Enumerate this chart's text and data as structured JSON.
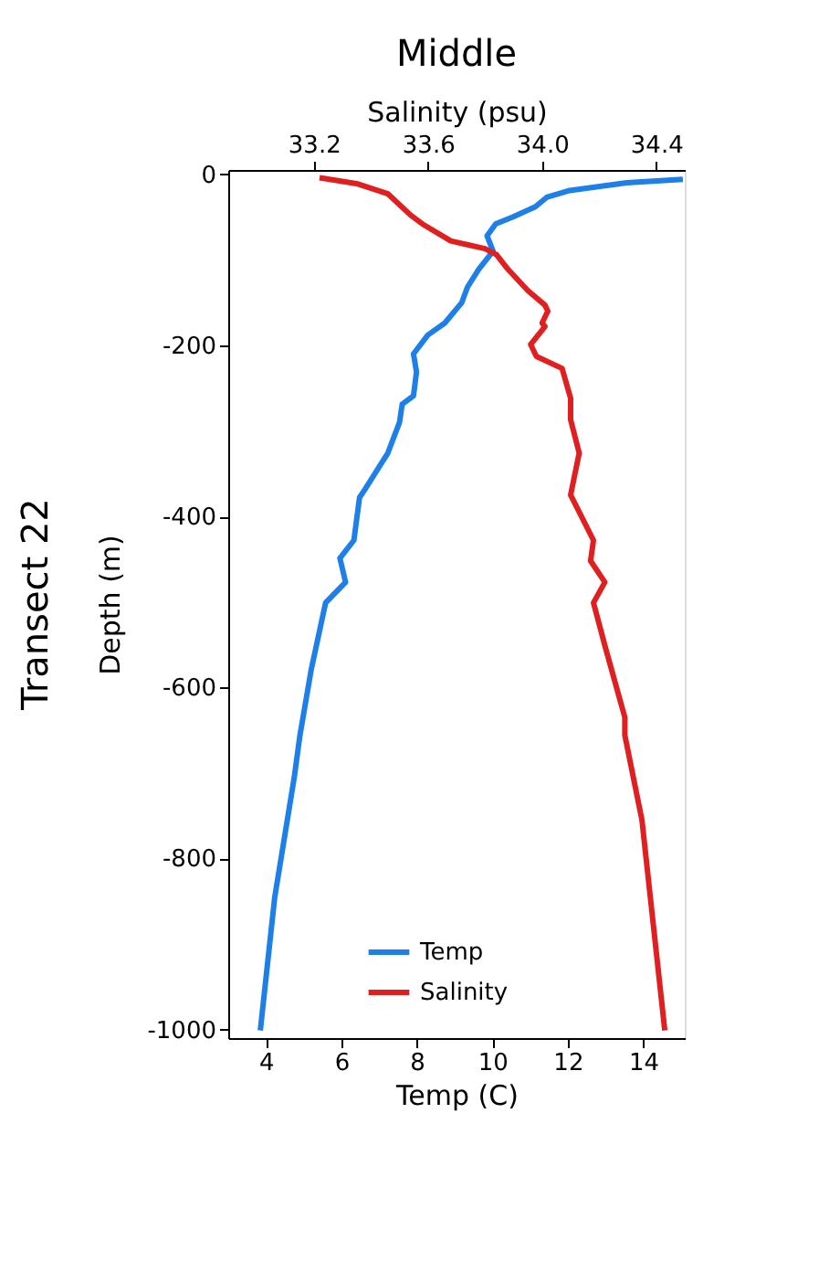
{
  "chart_data": {
    "type": "line",
    "title": "Middle",
    "xlabel": "Temp (C)",
    "x2label": "Salinity (psu)",
    "ylabel": "Depth (m)",
    "annotations": [
      "Transect 22"
    ],
    "xlim": [
      3,
      15.1
    ],
    "xticks": [
      4,
      6,
      8,
      10,
      12,
      14
    ],
    "x2lim": [
      32.9,
      34.5
    ],
    "x2ticks": [
      33.2,
      33.6,
      {
        "value": 34,
        "label": "34.0"
      },
      34.4
    ],
    "ylim": [
      -1010,
      5
    ],
    "yticks": [
      0,
      -200,
      -400,
      -600,
      -800,
      -1000
    ],
    "grid": false,
    "legend": "bottom",
    "marker": "none",
    "line_style": "solid",
    "series": [
      {
        "name": "Temp",
        "color": "#1e7fe8",
        "x": [
          15.05,
          13.56,
          12.05,
          11.44,
          11.14,
          10.54,
          10.09,
          9.86,
          10.02,
          9.64,
          9.34,
          9.19,
          8.74,
          8.29,
          7.91,
          7.99,
          7.91,
          7.61,
          7.54,
          7.23,
          6.63,
          6.48,
          6.33,
          5.96,
          6.11,
          5.58,
          5.2,
          4.9,
          4.75,
          4.23,
          3.85
        ],
        "values": [
          -6,
          -10,
          -19,
          -27,
          -38,
          -50,
          -58,
          -72,
          -90,
          -111,
          -132,
          -150,
          -174,
          -188,
          -210,
          -231,
          -259,
          -269,
          -290,
          -326,
          -368,
          -378,
          -428,
          -449,
          -477,
          -501,
          -579,
          -656,
          -705,
          -846,
          -1001
        ]
      },
      {
        "name": "Salinity",
        "color": "#e02020",
        "axis": "x2",
        "x": [
          33.22,
          33.35,
          33.46,
          33.54,
          33.58,
          33.68,
          33.8,
          33.84,
          33.88,
          33.95,
          34.01,
          34.02,
          34.0,
          34.01,
          33.96,
          33.98,
          34.07,
          34.1,
          34.1,
          34.13,
          34.1,
          34.18,
          34.17,
          34.22,
          34.18,
          34.22,
          34.29,
          34.29,
          34.35,
          34.43
        ],
        "values": [
          -4,
          -11,
          -23,
          -48,
          -58,
          -78,
          -87,
          -94,
          -111,
          -136,
          -153,
          -160,
          -174,
          -178,
          -199,
          -213,
          -227,
          -262,
          -287,
          -326,
          -375,
          -428,
          -452,
          -477,
          -501,
          -551,
          -635,
          -656,
          -755,
          -1001
        ]
      }
    ]
  }
}
